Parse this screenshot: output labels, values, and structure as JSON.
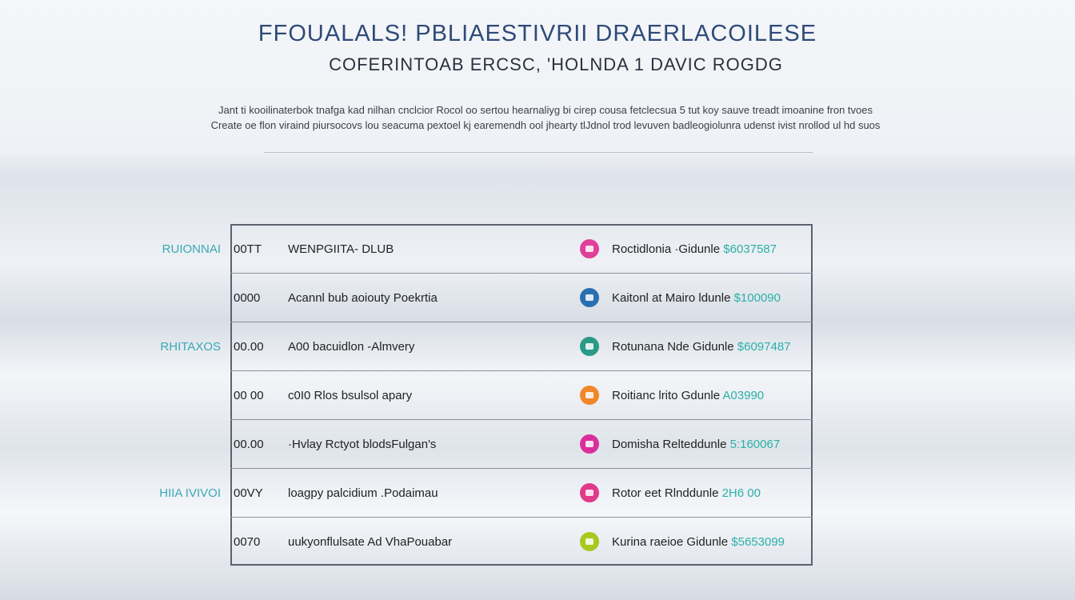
{
  "header": {
    "title": "FFOUALALS! PBLIAESTIVRII DRAERLACOILESE",
    "subtitle": "COFERINTOAB ERCSC, 'HOLNDA 1 DAVIC ROGDG"
  },
  "intro": [
    "Jant ti kooilinaterbok tnafga kad nilhan cnclcior Rocol oo sertou hearnaliyg bi cirep cousa fetclecsua 5 tut koy sauve treadt imoanine fron tvoes",
    "Create oe flon viraind piursocovs lou seacuma pextoel kj earemendh ool jhearty tlJdnol trod levuven badleogiolunra udenst ivist nrollod ul hd suos"
  ],
  "sections": [
    {
      "label": "RUIONNAI",
      "row": 0
    },
    {
      "label": "RHITAXOS",
      "row": 2
    },
    {
      "label": "HIIA IVIVOI",
      "row": 5
    }
  ],
  "table": {
    "rows": [
      {
        "time": "00TT",
        "label": "WENPGIITA- DLUB",
        "icon_color": "#e0409a",
        "name": "Roctidlonia ·Gidunle",
        "amount": "$6037587"
      },
      {
        "time": "0000",
        "label": "Acannl bub aoiouty Poekrtia",
        "icon_color": "#2a6fb0",
        "name": "Kaitonl at Mairo ldunle",
        "amount": "$100090"
      },
      {
        "time": "00.00",
        "label": "A00 bacuidlon -Almvery",
        "icon_color": "#2a9a88",
        "name": "Rotunana Nde Gidunle",
        "amount": "$6097487"
      },
      {
        "time": "00 00",
        "label": "c0I0 Rlos bsulsol apary",
        "icon_color": "#f0882a",
        "name": "Roitianc lrito Gdunle",
        "amount": "A03990"
      },
      {
        "time": "00.00",
        "label": "·Hvlay Rctyot blodsFulgan's",
        "icon_color": "#d8309a",
        "name": "Domisha Relteddunle",
        "amount": "5:160067"
      },
      {
        "time": "00VY",
        "label": "loagpy palcidium .Podaimau",
        "icon_color": "#e03a8a",
        "name": "Rotor eet Rlnddunle",
        "amount": "2H6 00"
      },
      {
        "time": "0070",
        "label": "uukyonflulsate Ad VhaPouabar",
        "icon_color": "#a8c81e",
        "name": "Kurina raeioe Gidunle",
        "amount": "$5653099"
      }
    ]
  }
}
